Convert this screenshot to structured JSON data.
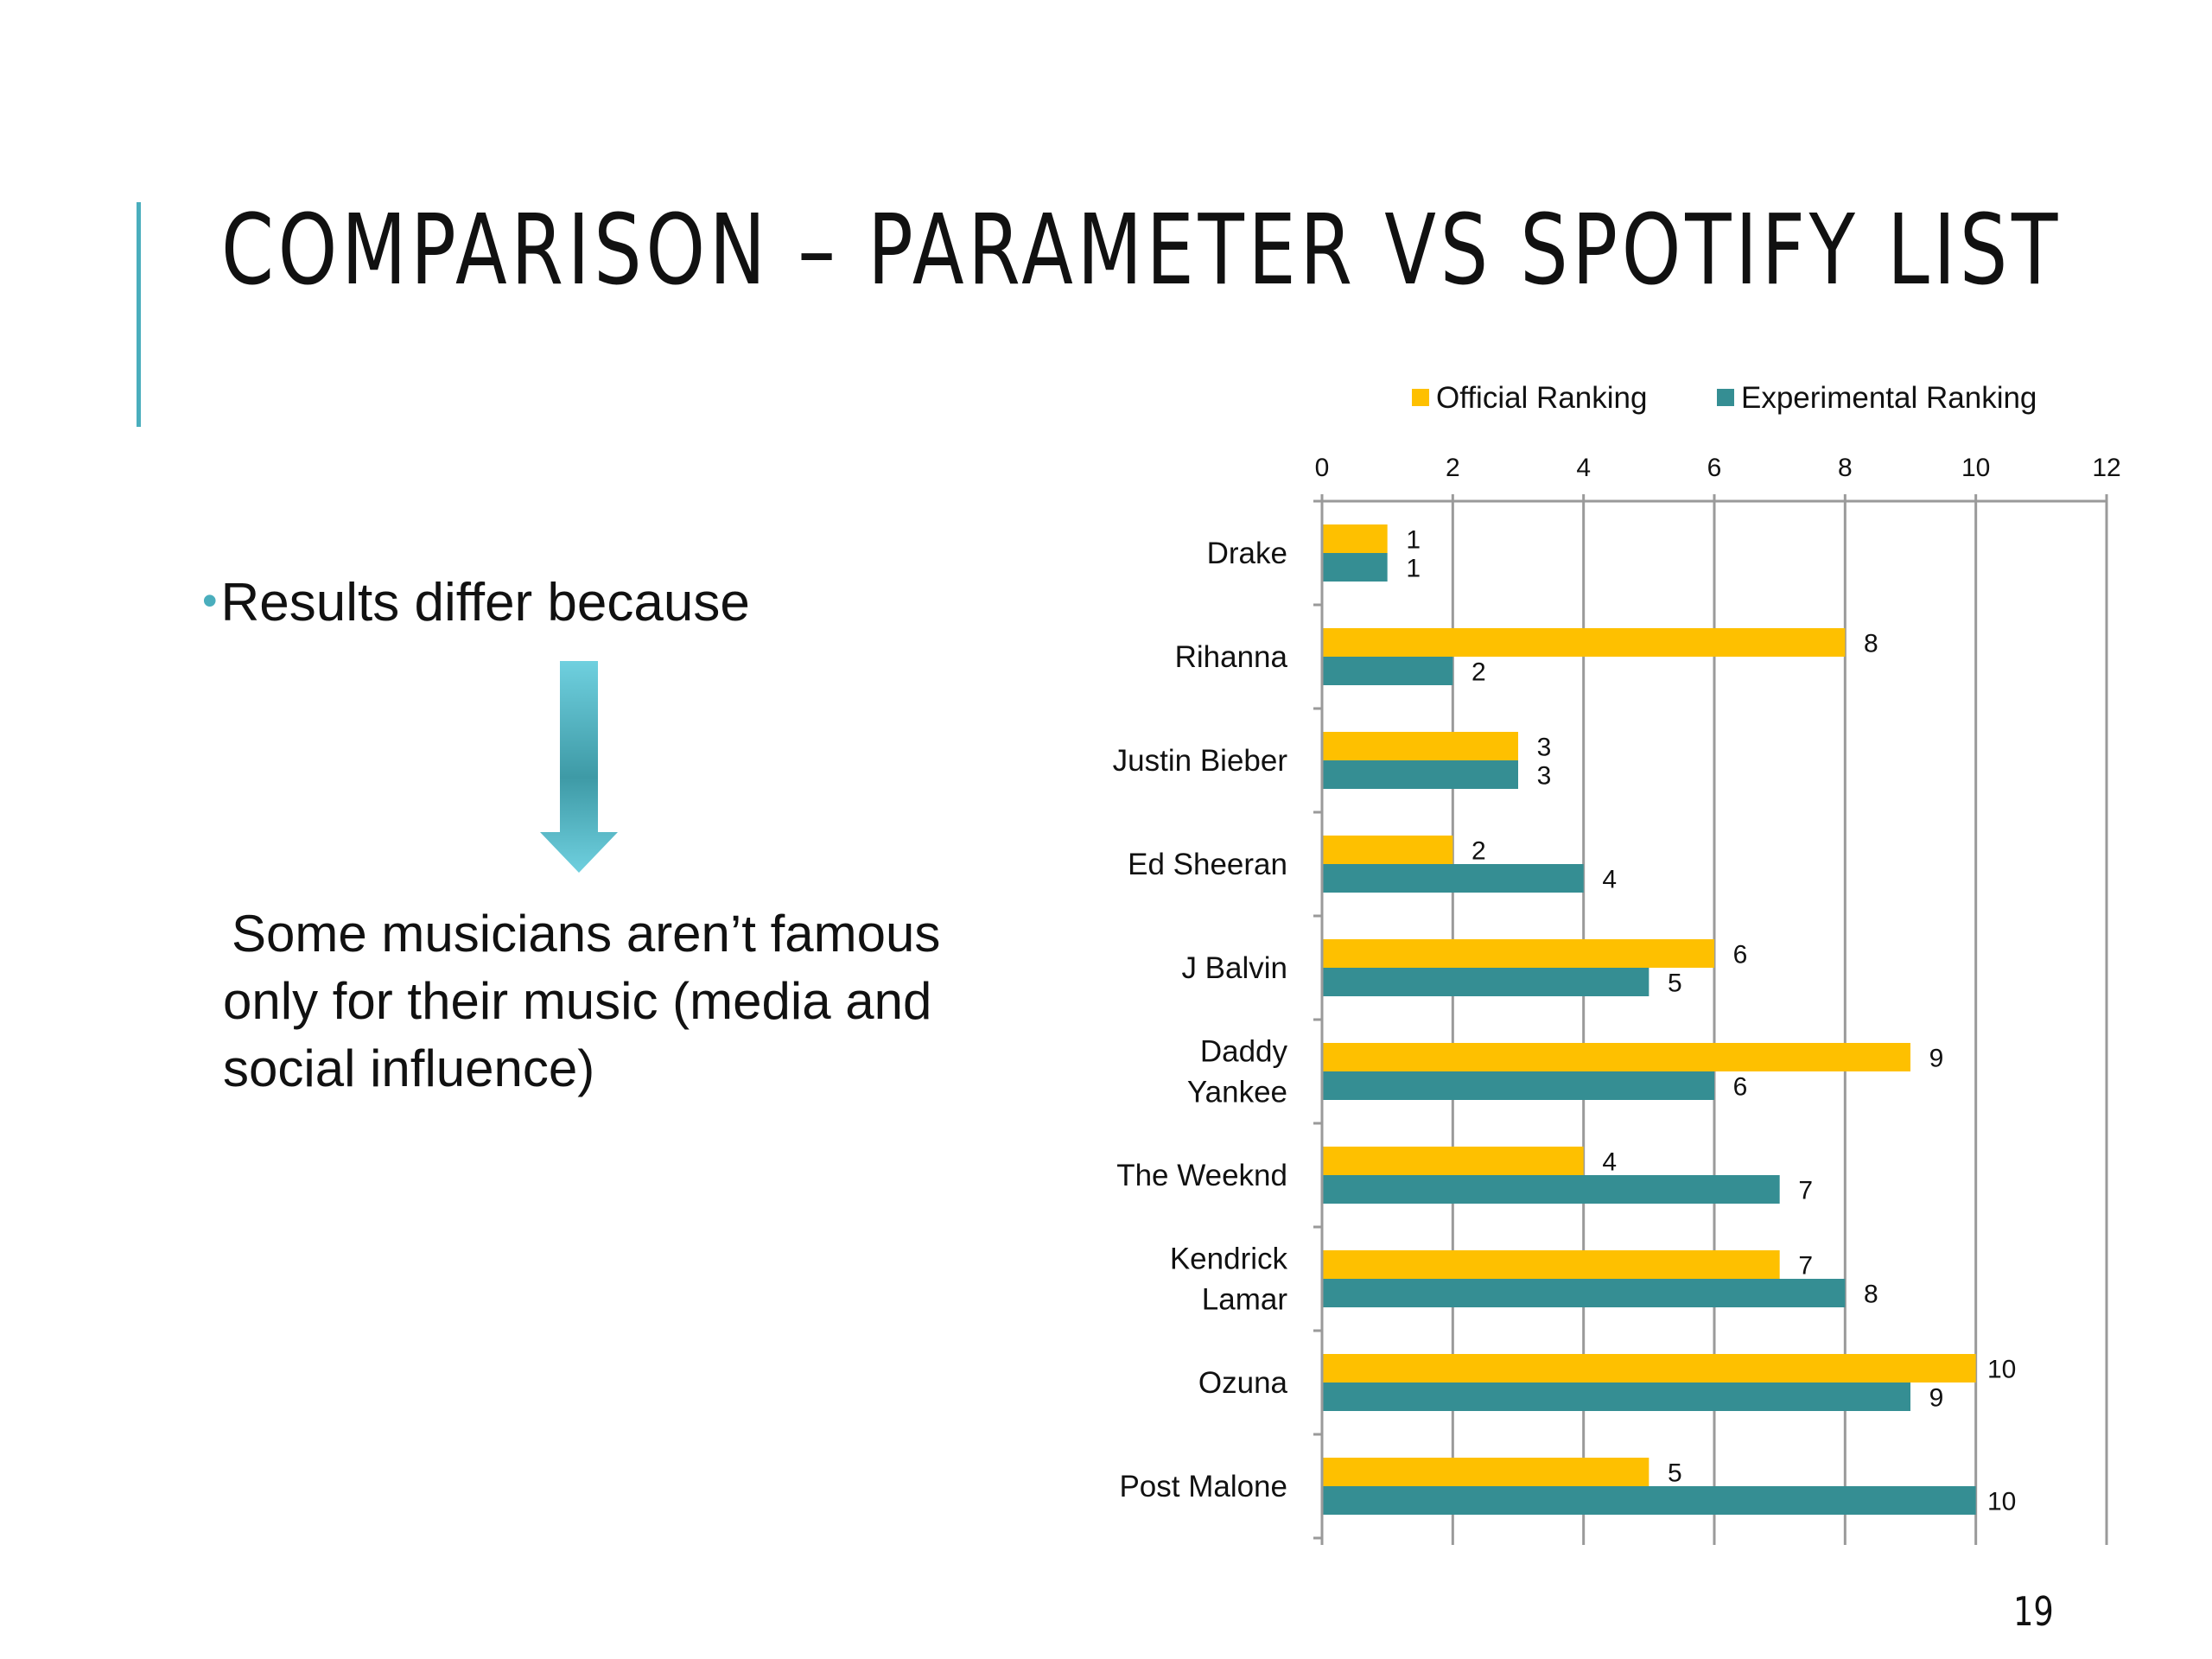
{
  "slide": {
    "title": "COMPARISON – PARAMETER VS SPOTIFY LIST",
    "bullet": "Results differ because",
    "explanation_lines": [
      "Some musicians aren’t famous",
      "only for their music (media and",
      "social influence)"
    ],
    "slide_number": "19",
    "accent_color": "#4aaebd"
  },
  "chart_data": {
    "type": "bar",
    "orientation": "horizontal",
    "categories": [
      [
        "Drake"
      ],
      [
        "Rihanna"
      ],
      [
        "Justin Bieber"
      ],
      [
        "Ed Sheeran"
      ],
      [
        "J Balvin"
      ],
      [
        "Daddy",
        "Yankee"
      ],
      [
        "The Weeknd"
      ],
      [
        "Kendrick",
        "Lamar"
      ],
      [
        "Ozuna"
      ],
      [
        "Post Malone"
      ]
    ],
    "series": [
      {
        "name": "Official Ranking",
        "color": "#fec000",
        "values": [
          1,
          8,
          3,
          2,
          6,
          9,
          4,
          7,
          10,
          5
        ]
      },
      {
        "name": "Experimental Ranking",
        "color": "#358e93",
        "values": [
          1,
          2,
          3,
          4,
          5,
          6,
          7,
          8,
          9,
          10
        ]
      }
    ],
    "xlim": [
      0,
      12
    ],
    "xticks": [
      0,
      2,
      4,
      6,
      8,
      10,
      12
    ],
    "x_axis_position": "top",
    "grid": true,
    "legend": "top",
    "data_labels": true,
    "title": "",
    "xlabel": "",
    "ylabel": ""
  }
}
